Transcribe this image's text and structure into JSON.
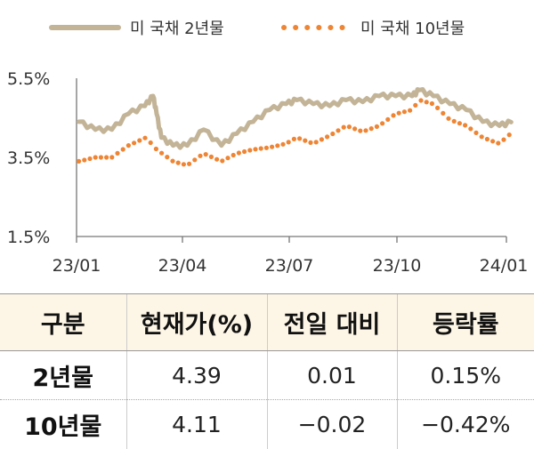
{
  "chart_data": {
    "type": "line",
    "title": "",
    "xlabel": "",
    "ylabel": "",
    "ylim": [
      1.5,
      5.5
    ],
    "yticks": [
      "5.5%",
      "3.5%",
      "1.5%"
    ],
    "xticks": [
      "23/01",
      "23/04",
      "23/07",
      "23/10",
      "24/01"
    ],
    "legend_position": "top",
    "series": [
      {
        "name": "미 국채 2년물",
        "style": "solid",
        "color": "#c3b497",
        "x": [
          "2023-01-03",
          "2023-01-17",
          "2023-01-31",
          "2023-02-14",
          "2023-02-28",
          "2023-03-07",
          "2023-03-10",
          "2023-03-14",
          "2023-03-24",
          "2023-04-05",
          "2023-04-19",
          "2023-05-04",
          "2023-05-17",
          "2023-05-31",
          "2023-06-14",
          "2023-06-28",
          "2023-07-07",
          "2023-07-21",
          "2023-08-04",
          "2023-08-18",
          "2023-09-01",
          "2023-09-15",
          "2023-09-29",
          "2023-10-13",
          "2023-10-19",
          "2023-10-31",
          "2023-11-14",
          "2023-11-28",
          "2023-12-12",
          "2023-12-26",
          "2024-01-05"
        ],
        "y": [
          4.4,
          4.2,
          4.2,
          4.6,
          4.8,
          5.05,
          4.6,
          4.0,
          3.8,
          3.8,
          4.2,
          3.8,
          4.1,
          4.4,
          4.7,
          4.85,
          4.95,
          4.85,
          4.8,
          4.95,
          4.9,
          5.05,
          5.05,
          5.05,
          5.2,
          5.05,
          4.85,
          4.7,
          4.4,
          4.3,
          4.39
        ]
      },
      {
        "name": "미 국채 10년물",
        "style": "dotted",
        "color": "#ee8534",
        "x": [
          "2023-01-03",
          "2023-01-17",
          "2023-01-31",
          "2023-02-14",
          "2023-03-01",
          "2023-03-10",
          "2023-03-24",
          "2023-04-05",
          "2023-04-19",
          "2023-05-04",
          "2023-05-17",
          "2023-05-31",
          "2023-06-14",
          "2023-06-28",
          "2023-07-07",
          "2023-07-21",
          "2023-08-04",
          "2023-08-18",
          "2023-09-01",
          "2023-09-15",
          "2023-09-29",
          "2023-10-13",
          "2023-10-19",
          "2023-10-31",
          "2023-11-14",
          "2023-11-28",
          "2023-12-12",
          "2023-12-26",
          "2024-01-05"
        ],
        "y": [
          3.4,
          3.5,
          3.5,
          3.8,
          4.0,
          3.7,
          3.4,
          3.3,
          3.6,
          3.4,
          3.6,
          3.7,
          3.75,
          3.85,
          4.0,
          3.85,
          4.05,
          4.3,
          4.15,
          4.3,
          4.6,
          4.7,
          4.95,
          4.85,
          4.45,
          4.3,
          4.0,
          3.85,
          4.11
        ]
      }
    ]
  },
  "table": {
    "headers": [
      "구분",
      "현재가(%)",
      "전일 대비",
      "등락률"
    ],
    "rows": [
      [
        "2년물",
        "4.39",
        "0.01",
        "0.15%"
      ],
      [
        "10년물",
        "4.11",
        "−0.02",
        "−0.42%"
      ]
    ]
  }
}
